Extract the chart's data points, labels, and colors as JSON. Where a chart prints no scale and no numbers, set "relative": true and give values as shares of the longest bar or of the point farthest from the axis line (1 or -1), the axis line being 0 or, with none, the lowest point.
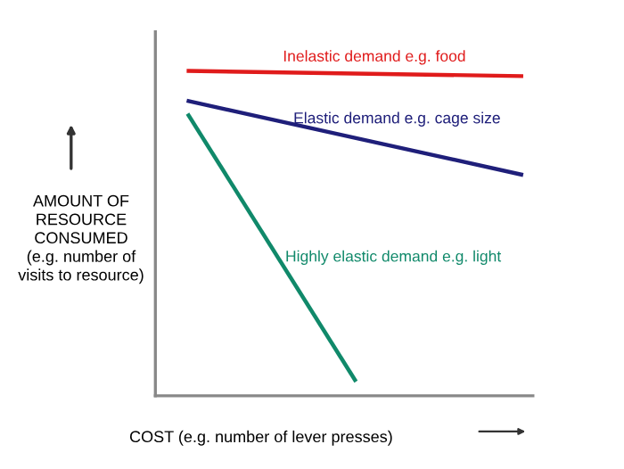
{
  "chart_data": {
    "type": "line",
    "relative": true,
    "xlabel": "COST (e.g. number of lever presses)",
    "ylabel": "AMOUNT OF\nRESOURCE\nCONSUMED\n(e.g. number of\nvisits to resource)",
    "categories": [
      null,
      null,
      null
    ],
    "tick_labels": false,
    "legend": false,
    "marker": "none",
    "line_style": "solid",
    "series": [
      {
        "name": "Inelastic demand e.g. food",
        "color": "#e01b1b",
        "values": [
          1.0,
          0.992,
          0.984
        ]
      },
      {
        "name": "Elastic demand e.g. cage size",
        "color": "#1f1f7a",
        "values": [
          0.907,
          0.794,
          0.681
        ]
      },
      {
        "name": "Highly elastic demand e.g. light",
        "color": "#10896a",
        "values": [
          0.863,
          0.049,
          null
        ]
      }
    ]
  }
}
